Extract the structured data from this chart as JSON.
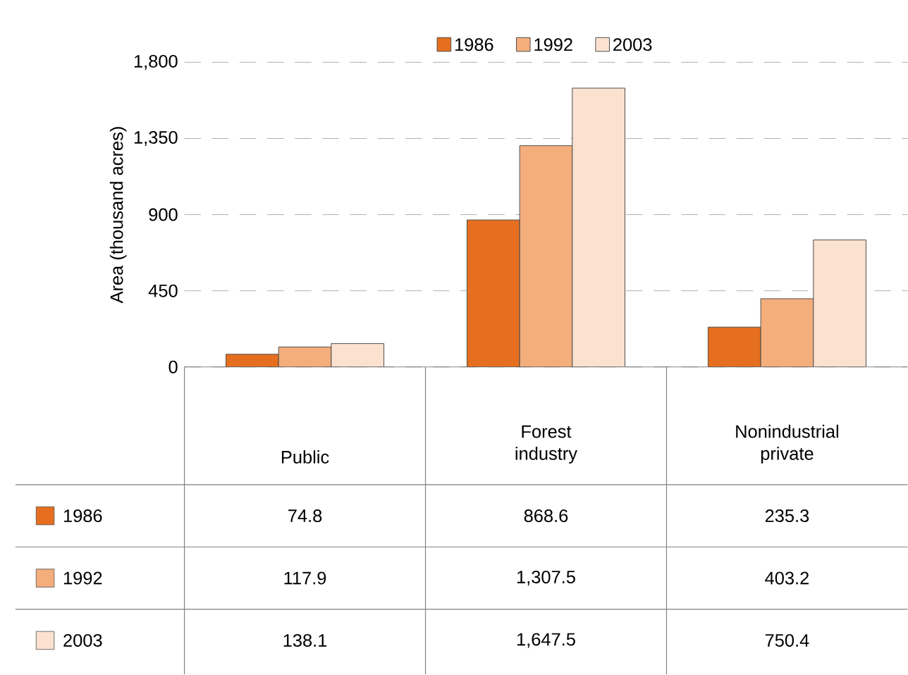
{
  "chart_data": {
    "type": "bar",
    "ylabel": "Area (thousand acres)",
    "categories": [
      "Public",
      "Forest industry",
      "Nonindustrial private"
    ],
    "series": [
      {
        "name": "1986",
        "color": "#e56f1f",
        "values": [
          74.8,
          868.6,
          235.3
        ],
        "value_labels": [
          "74.8",
          "868.6",
          "235.3"
        ]
      },
      {
        "name": "1992",
        "color": "#f4ae7c",
        "values": [
          117.9,
          1307.5,
          403.2
        ],
        "value_labels": [
          "117.9",
          "1,307.5",
          "403.2"
        ]
      },
      {
        "name": "2003",
        "color": "#fbe1cf",
        "values": [
          138.1,
          1647.5,
          750.4
        ],
        "value_labels": [
          "138.1",
          "1,647.5",
          "750.4"
        ]
      }
    ],
    "ylim": [
      0,
      1800
    ],
    "yticks": [
      0,
      {
        "value": 450,
        "label": "450"
      },
      {
        "value": 900,
        "label": "900"
      },
      {
        "value": 1350,
        "label": "1,350"
      },
      {
        "value": 1800,
        "label": "1,800"
      }
    ],
    "grid": "y",
    "legend": "top"
  }
}
